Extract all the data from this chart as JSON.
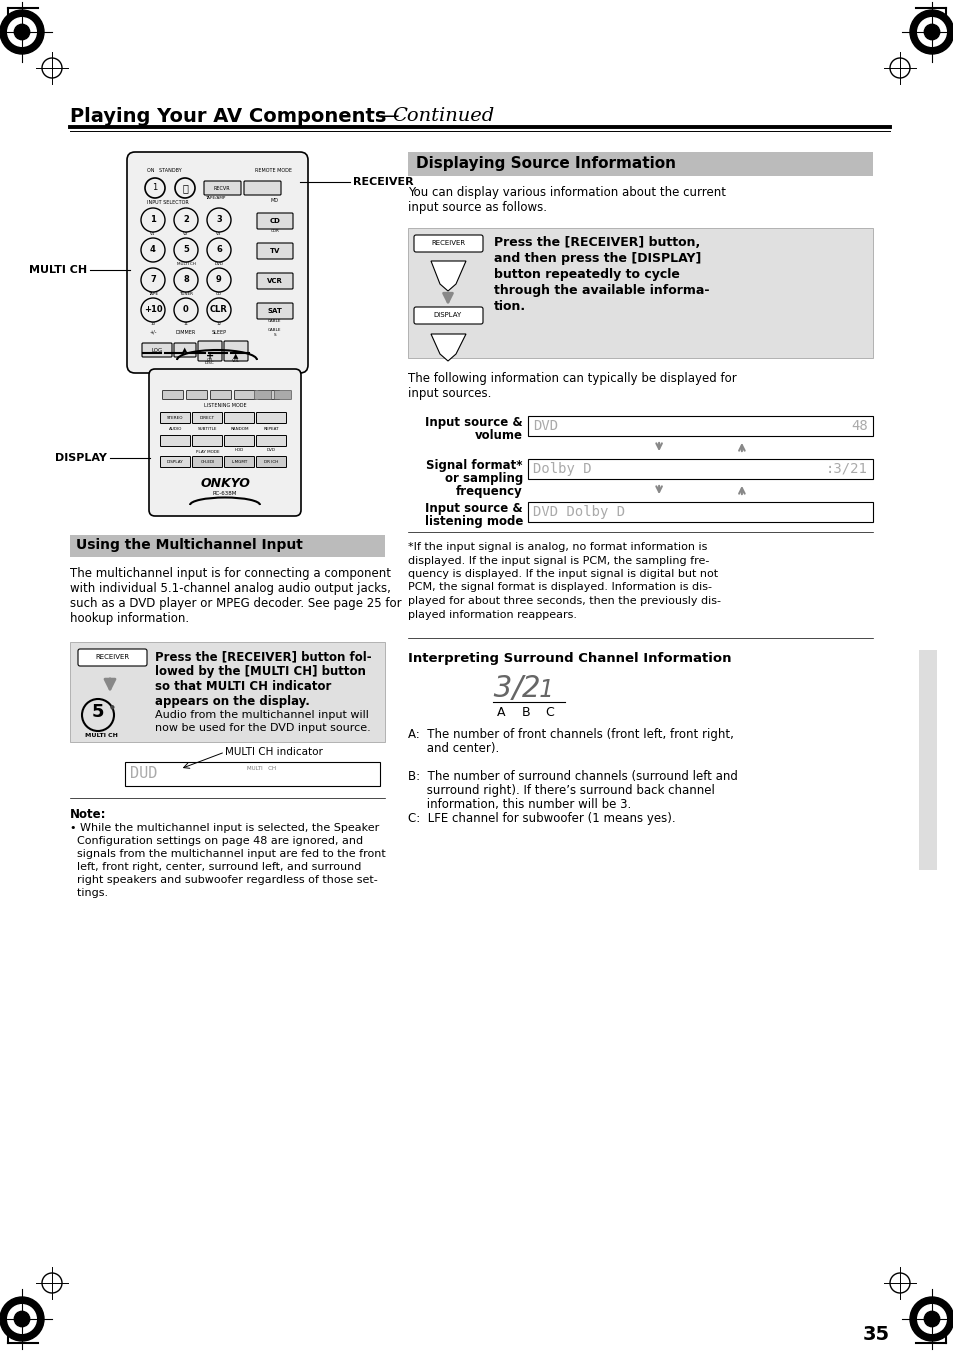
{
  "title_bold": "Playing Your AV Components",
  "title_italic": "—Continued",
  "section1_title": "Using the Multichannel Input",
  "section1_body": [
    "The multichannel input is for connecting a component",
    "with individual 5.1-channel analog audio output jacks,",
    "such as a DVD player or MPEG decoder. See page 25 for",
    "hookup information."
  ],
  "section1_step_bold_lines": [
    "Press the [RECEIVER] button fol-",
    "lowed by the [MULTI CH] button",
    "so that MULTI CH indicator",
    "appears on the display."
  ],
  "section1_step_body_lines": [
    "Audio from the multichannel input will",
    "now be used for the DVD input source."
  ],
  "section1_note_body": [
    "• While the multichannel input is selected, the Speaker",
    "  Configuration settings on page 48 are ignored, and",
    "  signals from the multichannel input are fed to the front",
    "  left, front right, center, surround left, and surround",
    "  right speakers and subwoofer regardless of those set-",
    "  tings."
  ],
  "section2_title": "Displaying Source Information",
  "section2_intro": [
    "You can display various information about the current",
    "input source as follows."
  ],
  "section2_step_bold_lines": [
    "Press the [RECEIVER] button,",
    "and then press the [DISPLAY]",
    "button repeatedly to cycle",
    "through the available informa-",
    "tion."
  ],
  "section2_body2": [
    "The following information can typically be displayed for",
    "input sources."
  ],
  "footnote": [
    "*If the input signal is analog, no format information is",
    "displayed. If the input signal is PCM, the sampling fre-",
    "quency is displayed. If the input signal is digital but not",
    "PCM, the signal format is displayed. Information is dis-",
    "played for about three seconds, then the previously dis-",
    "played information reappears."
  ],
  "surround_title": "Interpreting Surround Channel Information",
  "surround_items": [
    "A:  The number of front channels (front left, front right,\n     and center).",
    "B:  The number of surround channels (surround left and\n     surround right). If there’s surround back channel\n     information, this number will be 3.",
    "C:  LFE channel for subwoofer (1 means yes)."
  ],
  "page_number": "35",
  "bg_color": "#ffffff"
}
